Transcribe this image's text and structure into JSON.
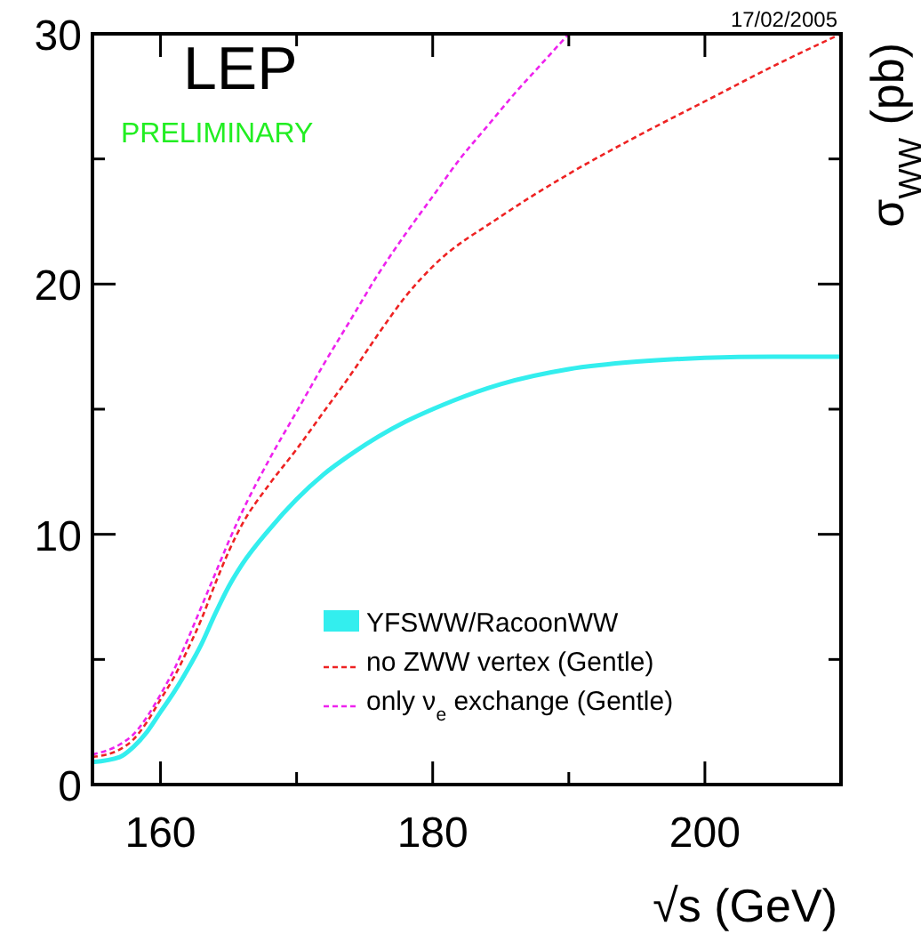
{
  "chart_data": {
    "type": "line",
    "xlabel": "√s (GeV)",
    "ylabel": "σ$_{WW}$ (pb)",
    "annotations": [
      "17/02/2005",
      "LEP",
      "PRELIMINARY"
    ],
    "xlim": [
      155,
      210
    ],
    "ylim": [
      0,
      30
    ],
    "xticks": [
      160,
      {
        "value": 170,
        "label": null
      },
      180,
      {
        "value": 190,
        "label": null
      },
      200
    ],
    "yticks": [
      0,
      {
        "value": 5,
        "label": null
      },
      10,
      {
        "value": 15,
        "label": null
      },
      20,
      {
        "value": 25,
        "label": null
      },
      30
    ],
    "legend": "bottom",
    "grid": false,
    "series": [
      {
        "name": "YFSWW/RacoonWW",
        "color": "#33eeee",
        "line_style": "solid",
        "x": [
          155,
          157,
          158,
          159,
          160,
          161,
          162,
          163,
          164,
          165,
          166,
          168,
          170,
          172,
          174,
          176,
          178,
          180,
          185,
          190,
          195,
          200,
          205,
          210
        ],
        "values": [
          0.9,
          1.1,
          1.5,
          2.1,
          2.9,
          3.7,
          4.6,
          5.6,
          6.8,
          7.9,
          8.8,
          10.2,
          11.4,
          12.4,
          13.2,
          13.9,
          14.5,
          15.0,
          16.0,
          16.6,
          16.9,
          17.05,
          17.1,
          17.1
        ]
      },
      {
        "name": "no ZWW vertex (Gentle)",
        "color": "#ee2222",
        "line_style": "dashed",
        "x": [
          155,
          157,
          158,
          159,
          160,
          161,
          162,
          163,
          164,
          165,
          166,
          168,
          170,
          172,
          174,
          176,
          178,
          180,
          185,
          190,
          195,
          200,
          205,
          210
        ],
        "values": [
          1.1,
          1.4,
          1.8,
          2.5,
          3.4,
          4.3,
          5.4,
          6.6,
          8.0,
          9.3,
          10.4,
          12.0,
          13.4,
          14.9,
          16.4,
          18.0,
          19.5,
          20.7,
          22.7,
          24.4,
          25.9,
          27.3,
          28.7,
          30.0
        ]
      },
      {
        "name": "only ν$_{e}$ exchange (Gentle)",
        "color": "#ee22ee",
        "line_style": "dashed",
        "x": [
          155,
          157,
          158,
          159,
          160,
          161,
          162,
          163,
          164,
          165,
          166,
          168,
          170,
          172,
          174,
          176,
          178,
          180,
          182,
          184,
          186,
          188,
          190
        ],
        "values": [
          1.2,
          1.6,
          2.0,
          2.7,
          3.6,
          4.6,
          5.8,
          7.1,
          8.4,
          9.7,
          10.9,
          13.0,
          14.9,
          16.8,
          18.6,
          20.4,
          22.0,
          23.5,
          25.0,
          26.3,
          27.6,
          28.8,
          30.0
        ]
      }
    ]
  }
}
